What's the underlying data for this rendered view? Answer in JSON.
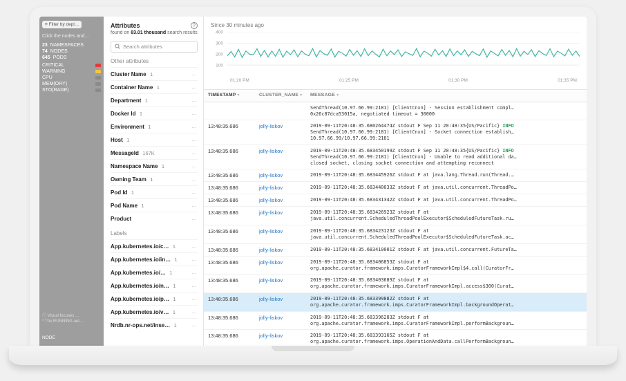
{
  "bg": {
    "filter_label": "Filter by depl…",
    "hint": "Click the nodes and…",
    "stats": [
      {
        "n": "23",
        "label": "NAMESPACES"
      },
      {
        "n": "74",
        "label": "NODES"
      },
      {
        "n": "645",
        "label": "PODS"
      }
    ],
    "statuses": [
      {
        "label": "CRITICAL",
        "color": "#e23b3b"
      },
      {
        "label": "WARNING",
        "color": "#f4c542"
      },
      {
        "label": "CPU",
        "color": "#8a8a8a"
      },
      {
        "label": "MEM(ORY)",
        "color": "#8a8a8a"
      },
      {
        "label": "STO(RAGE)",
        "color": "#8a8a8a"
      }
    ],
    "footnote1": "ⓘ Visual focuses …",
    "footnote2": "* The RUNNING are…",
    "node_label": "NODE"
  },
  "attributes": {
    "title": "Attributes",
    "subtitle_pre": "found on ",
    "subtitle_bold": "83.01 thousand",
    "subtitle_post": " search results",
    "search_placeholder": "Search attributes",
    "section1": "Other attributes",
    "items1": [
      {
        "name": "Cluster Name",
        "count": "1"
      },
      {
        "name": "Container Name",
        "count": "1"
      },
      {
        "name": "Department",
        "count": "1"
      },
      {
        "name": "Docker Id",
        "count": "1"
      },
      {
        "name": "Environment",
        "count": "1"
      },
      {
        "name": "Host",
        "count": "1"
      },
      {
        "name": "MessageId",
        "count": "167K"
      },
      {
        "name": "Namespace Name",
        "count": "1"
      },
      {
        "name": "Owning Team",
        "count": "1"
      },
      {
        "name": "Pod Id",
        "count": "1"
      },
      {
        "name": "Pod Name",
        "count": "1"
      },
      {
        "name": "Product",
        "count": ""
      }
    ],
    "section2": "Labels",
    "items2": [
      {
        "name": "App.kubernetes.io/c…",
        "count": "1"
      },
      {
        "name": "App.kubernetes.io/in…",
        "count": "1"
      },
      {
        "name": "App.kubernetes.io/…",
        "count": "1"
      },
      {
        "name": "App.kubernetes.io/n…",
        "count": "1"
      },
      {
        "name": "App.kubernetes.io/p…",
        "count": "1"
      },
      {
        "name": "App.kubernetes.io/v…",
        "count": "1"
      },
      {
        "name": "Nrdb.nr-ops.net/inse…",
        "count": "1"
      }
    ]
  },
  "chart": {
    "title": "Since 30 minutes ago",
    "y_ticks": [
      "400",
      "300",
      "200",
      "100"
    ],
    "y_min": 0,
    "y_max": 400,
    "x_ticks": [
      "01:20 PM",
      "01:25 PM",
      "01:30 PM",
      "01:35 PM"
    ],
    "line_color": "#3fb7a6",
    "grid_color": "#eeeeee",
    "series": [
      185,
      225,
      175,
      245,
      170,
      230,
      200,
      195,
      250,
      180,
      235,
      175,
      230,
      180,
      245,
      172,
      228,
      195,
      240,
      176,
      230,
      200,
      185,
      252,
      175,
      233,
      205,
      190,
      248,
      174,
      226,
      210,
      182,
      244,
      190,
      232,
      178,
      250,
      186,
      230,
      200,
      175,
      246,
      185,
      230,
      196,
      240,
      178,
      222,
      205,
      188,
      252,
      176,
      228,
      210,
      182,
      246,
      192,
      232,
      178,
      248,
      186,
      230,
      195,
      240,
      180,
      226,
      205,
      186,
      248,
      172,
      230,
      208,
      184,
      244,
      190,
      234,
      176,
      252,
      182,
      226,
      198,
      242,
      178,
      232,
      206,
      188,
      250,
      176,
      228,
      210,
      184,
      246,
      190,
      230,
      180
    ]
  },
  "table": {
    "headers": {
      "ts": "TIMESTAMP",
      "cl": "CLUSTER_NAME",
      "msg": "MESSAGE"
    },
    "cluster_link": "jolly-liskov",
    "rows": [
      {
        "ts": "",
        "msg": "SendThread(10.97.66.99:2181) [ClientCnxn] - Session establishment compl…\n0x26c87dca53015a, negotiated timeout = 30000"
      },
      {
        "ts": "13:48:35.686",
        "msg": "2019-09-11T20:48:35.680264474Z stdout F Sep 11 20:48:35{US/Pacific} <INFO>\nSendThread(10.97.66.99:2181) [ClientCnxn] - Socket connection establish…\n10.97.66.99/10.97.66.99:2181"
      },
      {
        "ts": "13:48:35.686",
        "msg": "2019-09-11T20:48:35.683450199Z stdout F Sep 11 20:48:35{US/Pacific} <INFO>\nSendThread(10.97.66.99:2181) [ClientCnxn] - Unable to read additional da…\nclosed socket, closing socket connection and attempting reconnect"
      },
      {
        "ts": "13:48:35.686",
        "msg": "2019-09-11T20:48:35.683445926Z stdout F at java.lang.Thread.run(Thread.…"
      },
      {
        "ts": "13:48:35.686",
        "msg": "2019-09-11T20:48:35.683440033Z stdout F at java.util.concurrent.ThreadPo…"
      },
      {
        "ts": "13:48:35.686",
        "msg": "2019-09-11T20:48:35.683431342Z stdout F at java.util.concurrent.ThreadPo…"
      },
      {
        "ts": "13:48:35.686",
        "msg": "2019-09-11T20:48:35.683426923Z stdout F at\njava.util.concurrent.ScheduledThreadPoolExecutor$ScheduledFutureTask.ru…"
      },
      {
        "ts": "13:48:35.686",
        "msg": "2019-09-11T20:48:35.683423123Z stdout F at\njava.util.concurrent.ScheduledThreadPoolExecutor$ScheduledFutureTask.ac…"
      },
      {
        "ts": "13:48:35.686",
        "msg": "2019-09-11T20:48:35.683410001Z stdout F at java.util.concurrent.FutureTa…"
      },
      {
        "ts": "13:48:35.686",
        "msg": "2019-09-11T20:48:35.683406853Z stdout F at\norg.apache.curator.framework.imps.CuratorFrameworkImpl$4.call(CuratorFr…"
      },
      {
        "ts": "13:48:35.686",
        "msg": "2019-09-11T20:48:35.683403689Z stdout F at\norg.apache.curator.framework.imps.CuratorFrameworkImpl.access$300(Curat…"
      },
      {
        "ts": "13:48:35.686",
        "selected": true,
        "msg": "2019-09-11T20:48:35.683399882Z stdout F at\norg.apache.curator.framework.imps.CuratorFrameworkImpl.backgroundOperat…"
      },
      {
        "ts": "13:48:35.686",
        "msg": "2019-09-11T20:48:35.683396283Z stdout F at\norg.apache.curator.framework.imps.CuratorFrameworkImpl.performBackgroun…"
      },
      {
        "ts": "13:48:35.686",
        "msg": "2019-09-11T20:48:35.683393165Z stdout F at\norg.apache.curator.framework.imps.OperationAndData.callPerformBackgroun…"
      }
    ]
  }
}
